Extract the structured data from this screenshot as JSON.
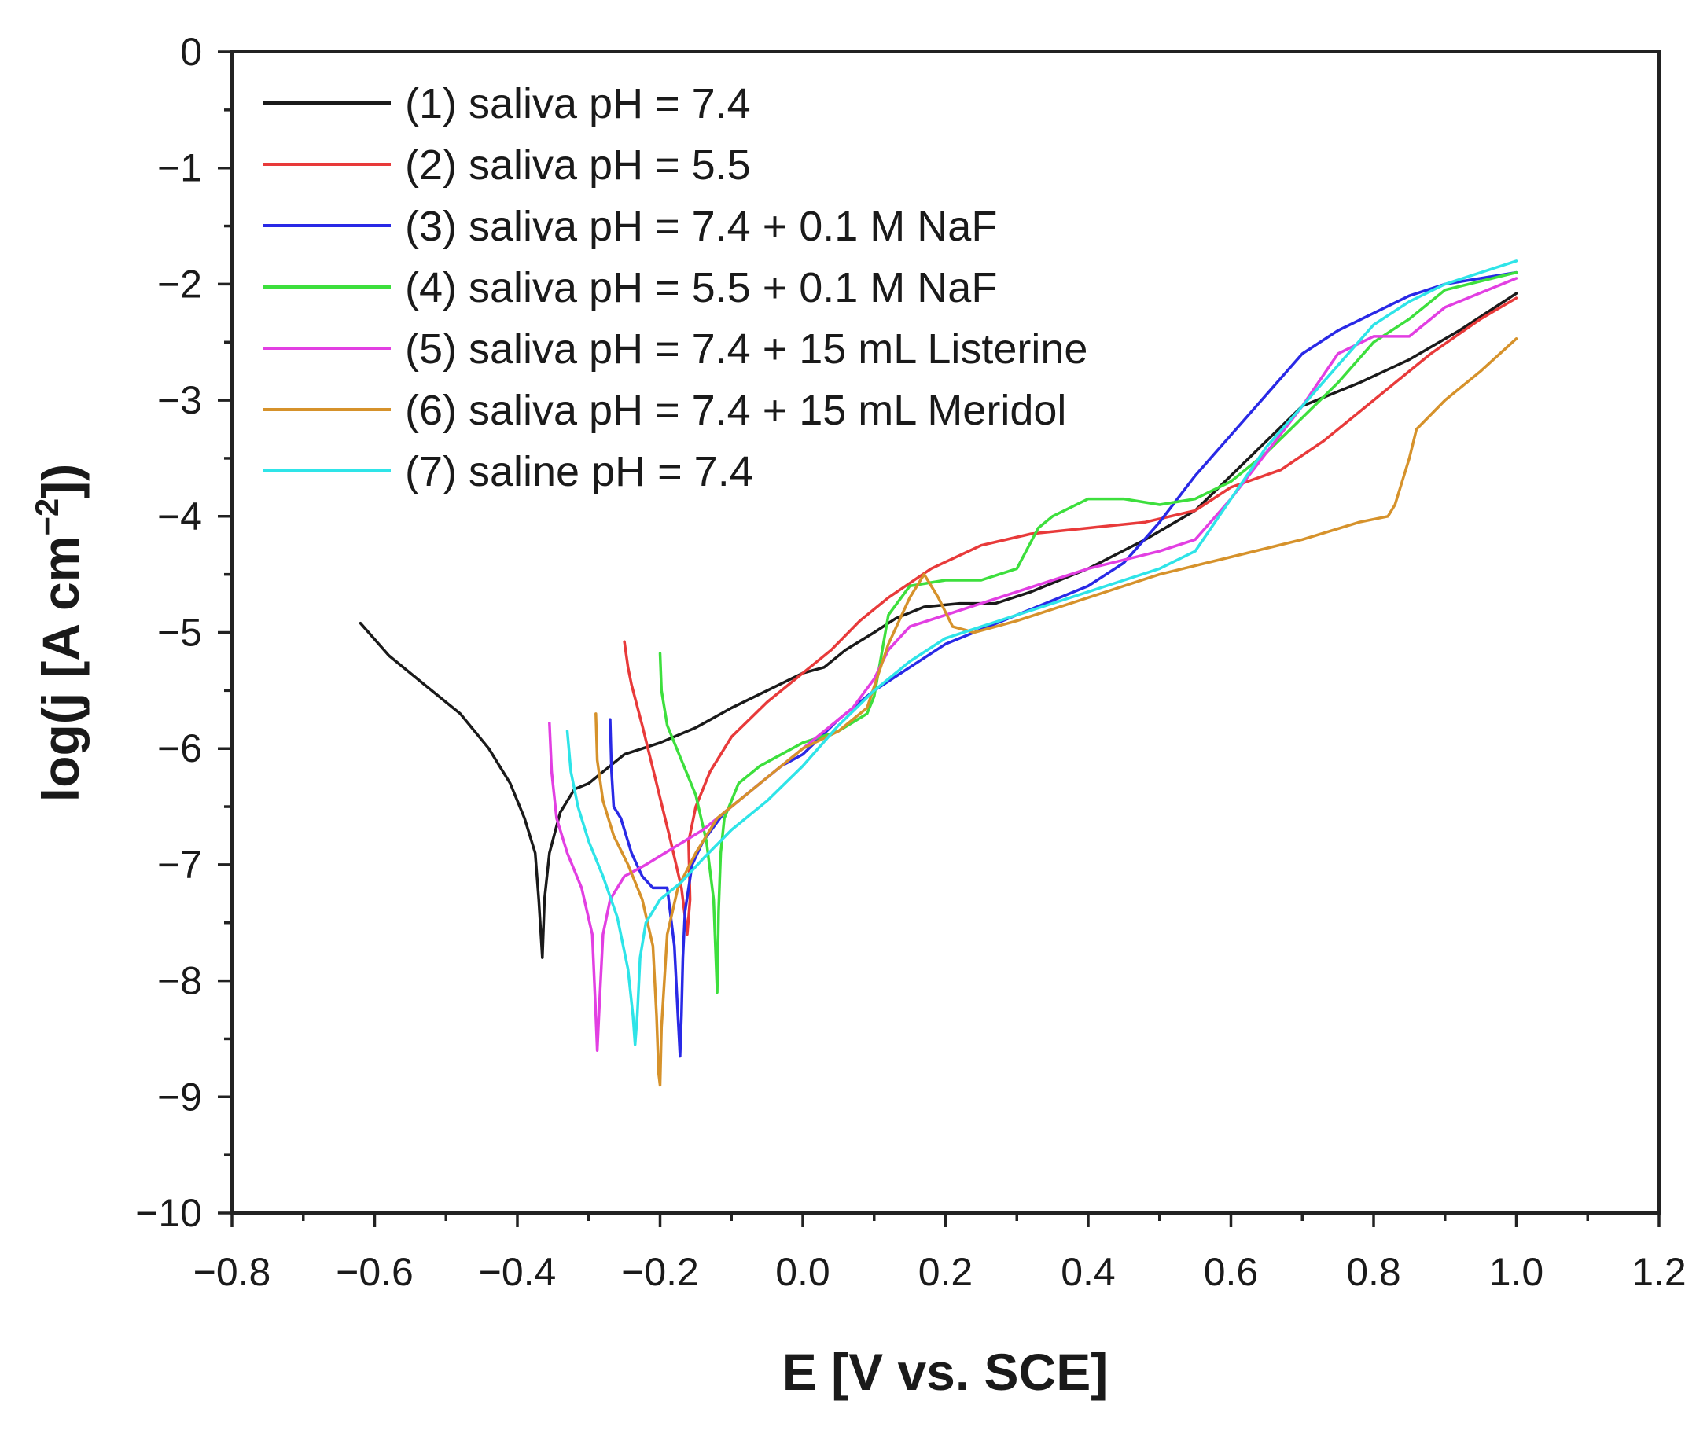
{
  "chart_data": {
    "type": "line",
    "title": "",
    "xlabel": "E [V vs. SCE]",
    "ylabel_prefix": "log(j [A cm",
    "ylabel_sup": "−2",
    "ylabel_suffix": "])",
    "xlim": [
      -0.8,
      1.2
    ],
    "ylim": [
      -10,
      0
    ],
    "xticks": [
      -0.8,
      -0.6,
      -0.4,
      -0.2,
      0.0,
      0.2,
      0.4,
      0.6,
      0.8,
      1.0,
      1.2
    ],
    "xtick_labels": [
      "−0.8",
      "−0.6",
      "−0.4",
      "−0.2",
      "0.0",
      "0.2",
      "0.4",
      "0.6",
      "0.8",
      "1.0",
      "1.2"
    ],
    "yticks": [
      0,
      -1,
      -2,
      -3,
      -4,
      -5,
      -6,
      -7,
      -8,
      -9,
      -10
    ],
    "ytick_labels": [
      "0",
      "−1",
      "−2",
      "−3",
      "−4",
      "−5",
      "−6",
      "−7",
      "−8",
      "−9",
      "−10"
    ],
    "legend_position": "top-left",
    "series": [
      {
        "name": "(1) saliva pH = 7.4",
        "color": "#1a1a1a",
        "x": [
          -0.62,
          -0.58,
          -0.53,
          -0.48,
          -0.44,
          -0.41,
          -0.39,
          -0.375,
          -0.37,
          -0.365,
          -0.365,
          -0.362,
          -0.355,
          -0.34,
          -0.32,
          -0.3,
          -0.28,
          -0.25,
          -0.2,
          -0.15,
          -0.1,
          -0.05,
          0.0,
          0.03,
          0.06,
          0.1,
          0.13,
          0.17,
          0.22,
          0.27,
          0.32,
          0.4,
          0.48,
          0.55,
          0.6,
          0.65,
          0.7,
          0.78,
          0.85,
          0.92,
          1.0
        ],
        "y": [
          -4.92,
          -5.2,
          -5.45,
          -5.7,
          -6.0,
          -6.3,
          -6.6,
          -6.9,
          -7.3,
          -7.8,
          -7.8,
          -7.3,
          -6.9,
          -6.55,
          -6.35,
          -6.3,
          -6.2,
          -6.05,
          -5.95,
          -5.82,
          -5.65,
          -5.5,
          -5.35,
          -5.3,
          -5.15,
          -5.0,
          -4.88,
          -4.78,
          -4.75,
          -4.75,
          -4.65,
          -4.45,
          -4.2,
          -3.95,
          -3.65,
          -3.35,
          -3.05,
          -2.85,
          -2.65,
          -2.4,
          -2.08
        ]
      },
      {
        "name": "(2) saliva pH = 5.5",
        "color": "#e83a3a",
        "x": [
          -0.25,
          -0.245,
          -0.24,
          -0.225,
          -0.205,
          -0.185,
          -0.17,
          -0.162,
          -0.158,
          -0.16,
          -0.15,
          -0.13,
          -0.1,
          -0.05,
          0.0,
          0.04,
          0.08,
          0.12,
          0.18,
          0.25,
          0.32,
          0.4,
          0.48,
          0.55,
          0.6,
          0.67,
          0.73,
          0.8,
          0.88,
          0.95,
          1.0
        ],
        "y": [
          -5.08,
          -5.3,
          -5.45,
          -5.8,
          -6.3,
          -6.8,
          -7.2,
          -7.6,
          -7.3,
          -6.8,
          -6.5,
          -6.2,
          -5.9,
          -5.6,
          -5.35,
          -5.15,
          -4.9,
          -4.7,
          -4.45,
          -4.25,
          -4.15,
          -4.1,
          -4.05,
          -3.95,
          -3.75,
          -3.6,
          -3.35,
          -3.0,
          -2.6,
          -2.3,
          -2.12
        ]
      },
      {
        "name": "(3) saliva pH = 7.4 + 0.1 M NaF",
        "color": "#2929e6",
        "x": [
          -0.27,
          -0.268,
          -0.265,
          -0.255,
          -0.24,
          -0.225,
          -0.21,
          -0.19,
          -0.18,
          -0.175,
          -0.172,
          -0.17,
          -0.168,
          -0.165,
          -0.155,
          -0.14,
          -0.11,
          -0.07,
          -0.03,
          0.0,
          0.05,
          0.1,
          0.15,
          0.2,
          0.3,
          0.4,
          0.45,
          0.5,
          0.55,
          0.6,
          0.65,
          0.7,
          0.75,
          0.8,
          0.85,
          0.9,
          1.0
        ],
        "y": [
          -5.75,
          -6.2,
          -6.5,
          -6.6,
          -6.9,
          -7.1,
          -7.2,
          -7.2,
          -7.7,
          -8.3,
          -8.65,
          -8.3,
          -7.8,
          -7.4,
          -7.0,
          -6.8,
          -6.55,
          -6.35,
          -6.15,
          -6.05,
          -5.75,
          -5.5,
          -5.3,
          -5.1,
          -4.85,
          -4.6,
          -4.4,
          -4.05,
          -3.65,
          -3.3,
          -2.95,
          -2.6,
          -2.4,
          -2.25,
          -2.1,
          -2.0,
          -1.9
        ]
      },
      {
        "name": "(4) saliva pH = 5.5 + 0.1 M NaF",
        "color": "#3ddf3d",
        "x": [
          -0.2,
          -0.198,
          -0.19,
          -0.17,
          -0.15,
          -0.135,
          -0.125,
          -0.12,
          -0.118,
          -0.115,
          -0.11,
          -0.09,
          -0.06,
          -0.03,
          0.0,
          0.05,
          0.09,
          0.1,
          0.12,
          0.15,
          0.2,
          0.25,
          0.3,
          0.33,
          0.35,
          0.4,
          0.45,
          0.5,
          0.55,
          0.6,
          0.65,
          0.7,
          0.75,
          0.8,
          0.85,
          0.9,
          1.0
        ],
        "y": [
          -5.18,
          -5.5,
          -5.8,
          -6.1,
          -6.4,
          -6.8,
          -7.3,
          -8.1,
          -7.4,
          -6.9,
          -6.6,
          -6.3,
          -6.15,
          -6.05,
          -5.95,
          -5.85,
          -5.7,
          -5.55,
          -4.85,
          -4.6,
          -4.55,
          -4.55,
          -4.45,
          -4.1,
          -4.0,
          -3.85,
          -3.85,
          -3.9,
          -3.85,
          -3.7,
          -3.45,
          -3.15,
          -2.85,
          -2.5,
          -2.3,
          -2.05,
          -1.9
        ]
      },
      {
        "name": "(5) saliva pH = 7.4 + 15 mL Listerine",
        "color": "#e23fe2",
        "x": [
          -0.355,
          -0.352,
          -0.345,
          -0.33,
          -0.31,
          -0.295,
          -0.29,
          -0.288,
          -0.285,
          -0.28,
          -0.27,
          -0.25,
          -0.22,
          -0.18,
          -0.14,
          -0.1,
          -0.06,
          -0.02,
          0.02,
          0.07,
          0.1,
          0.12,
          0.15,
          0.2,
          0.3,
          0.4,
          0.5,
          0.55,
          0.6,
          0.65,
          0.7,
          0.75,
          0.8,
          0.85,
          0.9,
          1.0
        ],
        "y": [
          -5.78,
          -6.2,
          -6.6,
          -6.9,
          -7.2,
          -7.6,
          -8.3,
          -8.6,
          -8.2,
          -7.6,
          -7.3,
          -7.1,
          -7.0,
          -6.85,
          -6.7,
          -6.5,
          -6.3,
          -6.1,
          -5.9,
          -5.65,
          -5.4,
          -5.15,
          -4.95,
          -4.85,
          -4.65,
          -4.45,
          -4.3,
          -4.2,
          -3.85,
          -3.45,
          -3.05,
          -2.6,
          -2.45,
          -2.45,
          -2.2,
          -1.95
        ]
      },
      {
        "name": "(6) saliva pH = 7.4 + 15 mL Meridol",
        "color": "#d6922b",
        "x": [
          -0.29,
          -0.288,
          -0.28,
          -0.265,
          -0.245,
          -0.225,
          -0.21,
          -0.205,
          -0.202,
          -0.2,
          -0.198,
          -0.19,
          -0.175,
          -0.15,
          -0.12,
          -0.08,
          -0.04,
          0.0,
          0.05,
          0.09,
          0.12,
          0.15,
          0.17,
          0.19,
          0.21,
          0.24,
          0.3,
          0.4,
          0.5,
          0.6,
          0.7,
          0.78,
          0.82,
          0.83,
          0.85,
          0.86,
          0.9,
          0.95,
          1.0
        ],
        "y": [
          -5.7,
          -6.1,
          -6.45,
          -6.75,
          -7.0,
          -7.3,
          -7.7,
          -8.3,
          -8.8,
          -8.9,
          -8.4,
          -7.6,
          -7.2,
          -6.9,
          -6.6,
          -6.4,
          -6.2,
          -6.0,
          -5.85,
          -5.65,
          -5.1,
          -4.7,
          -4.5,
          -4.7,
          -4.95,
          -5.0,
          -4.9,
          -4.7,
          -4.5,
          -4.35,
          -4.2,
          -4.05,
          -4.0,
          -3.9,
          -3.5,
          -3.25,
          -3.0,
          -2.75,
          -2.47
        ]
      },
      {
        "name": "(7) saline pH = 7.4",
        "color": "#2ee4e8",
        "x": [
          -0.33,
          -0.325,
          -0.315,
          -0.3,
          -0.28,
          -0.26,
          -0.245,
          -0.238,
          -0.235,
          -0.232,
          -0.228,
          -0.22,
          -0.2,
          -0.17,
          -0.14,
          -0.1,
          -0.05,
          0.0,
          0.05,
          0.1,
          0.15,
          0.2,
          0.3,
          0.4,
          0.5,
          0.55,
          0.6,
          0.65,
          0.7,
          0.75,
          0.8,
          0.85,
          0.9,
          1.0
        ],
        "y": [
          -5.85,
          -6.2,
          -6.5,
          -6.8,
          -7.1,
          -7.45,
          -7.9,
          -8.3,
          -8.55,
          -8.3,
          -7.8,
          -7.5,
          -7.3,
          -7.15,
          -6.95,
          -6.7,
          -6.45,
          -6.15,
          -5.8,
          -5.5,
          -5.25,
          -5.05,
          -4.85,
          -4.65,
          -4.45,
          -4.3,
          -3.85,
          -3.4,
          -3.05,
          -2.7,
          -2.35,
          -2.15,
          -2.0,
          -1.8
        ]
      }
    ]
  }
}
